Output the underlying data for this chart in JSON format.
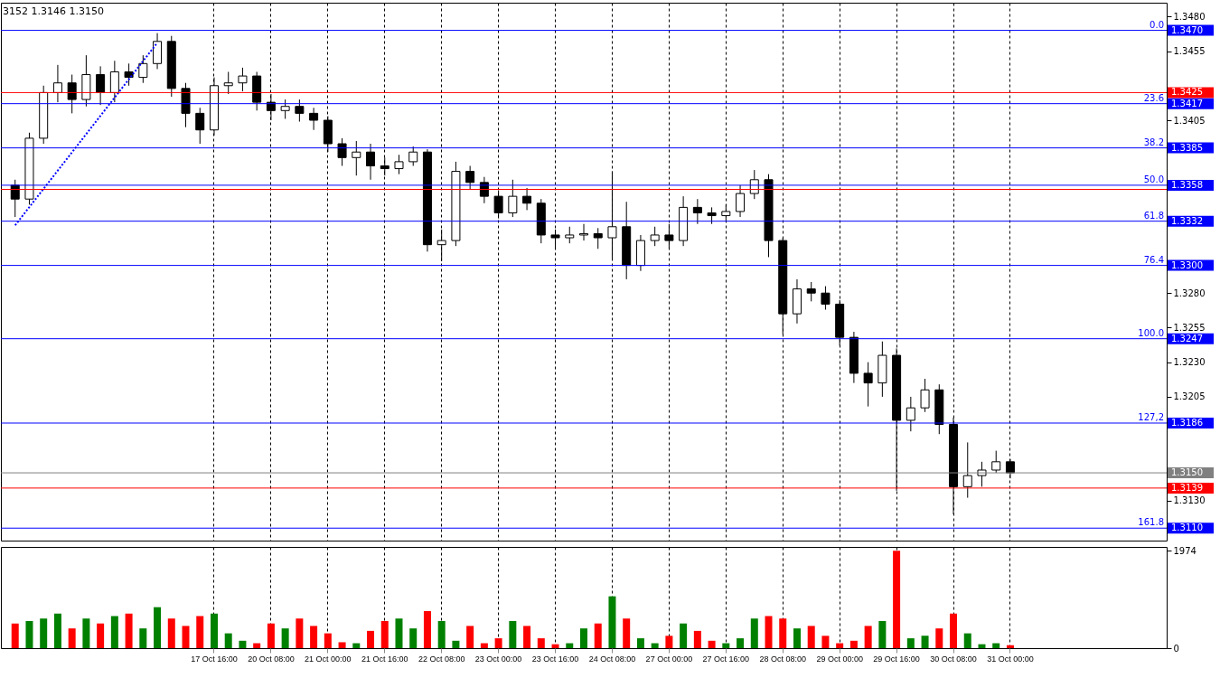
{
  "chart_data": [
    {
      "type": "candlestick",
      "title": "3152 1.3146 1.3150",
      "categories": [
        null,
        null,
        null,
        null,
        null,
        null,
        null,
        null,
        null,
        null,
        null,
        null,
        null,
        null,
        null,
        null,
        null,
        null,
        null,
        null,
        null,
        null,
        null,
        null,
        null,
        null,
        null,
        null,
        null,
        null,
        null,
        null,
        null,
        null,
        null,
        null,
        null,
        null,
        null,
        null,
        null,
        null,
        null,
        null,
        null,
        null,
        null,
        null,
        null,
        null,
        null,
        null,
        null,
        null,
        null,
        null,
        null,
        null,
        null,
        null,
        null,
        null,
        null,
        null,
        null,
        null,
        null,
        null,
        null,
        null,
        null,
        null,
        null,
        null,
        null,
        null,
        null,
        null,
        null,
        null,
        null
      ],
      "ohlc": [
        [
          1.3358,
          1.3362,
          1.3335,
          1.3348
        ],
        [
          1.3348,
          1.3396,
          1.3344,
          1.3392
        ],
        [
          1.3392,
          1.343,
          1.3388,
          1.3425
        ],
        [
          1.3425,
          1.3445,
          1.3418,
          1.3432
        ],
        [
          1.3432,
          1.3438,
          1.341,
          1.342
        ],
        [
          1.342,
          1.3452,
          1.3415,
          1.3438
        ],
        [
          1.3438,
          1.3444,
          1.3416,
          1.3425
        ],
        [
          1.3425,
          1.3448,
          1.3418,
          1.344
        ],
        [
          1.344,
          1.3446,
          1.343,
          1.3436
        ],
        [
          1.3436,
          1.3452,
          1.3432,
          1.3446
        ],
        [
          1.3446,
          1.3468,
          1.3442,
          1.3462
        ],
        [
          1.3462,
          1.3466,
          1.3422,
          1.3428
        ],
        [
          1.3428,
          1.3432,
          1.34,
          1.341
        ],
        [
          1.341,
          1.3414,
          1.3388,
          1.3398
        ],
        [
          1.3398,
          1.3436,
          1.3394,
          1.343
        ],
        [
          1.343,
          1.344,
          1.3424,
          1.3432
        ],
        [
          1.3432,
          1.3443,
          1.3426,
          1.3437
        ],
        [
          1.3437,
          1.344,
          1.3412,
          1.3418
        ],
        [
          1.3418,
          1.3424,
          1.3405,
          1.3412
        ],
        [
          1.3412,
          1.342,
          1.3406,
          1.3415
        ],
        [
          1.3415,
          1.342,
          1.3404,
          1.341
        ],
        [
          1.341,
          1.3414,
          1.3398,
          1.3405
        ],
        [
          1.3405,
          1.3408,
          1.3382,
          1.3388
        ],
        [
          1.3388,
          1.3392,
          1.3372,
          1.3378
        ],
        [
          1.3378,
          1.339,
          1.3365,
          1.3382
        ],
        [
          1.3382,
          1.3388,
          1.3362,
          1.3372
        ],
        [
          1.3372,
          1.3378,
          1.3365,
          1.337
        ],
        [
          1.337,
          1.338,
          1.3366,
          1.3375
        ],
        [
          1.3375,
          1.3386,
          1.3372,
          1.3382
        ],
        [
          1.3382,
          1.3384,
          1.331,
          1.3315
        ],
        [
          1.3315,
          1.3326,
          1.3303,
          1.3318
        ],
        [
          1.3318,
          1.3375,
          1.3314,
          1.3368
        ],
        [
          1.3368,
          1.3372,
          1.3355,
          1.336
        ],
        [
          1.336,
          1.3364,
          1.3345,
          1.335
        ],
        [
          1.335,
          1.3354,
          1.3334,
          1.3338
        ],
        [
          1.3338,
          1.3362,
          1.3335,
          1.335
        ],
        [
          1.335,
          1.3356,
          1.334,
          1.3345
        ],
        [
          1.3345,
          1.3348,
          1.3316,
          1.3322
        ],
        [
          1.3322,
          1.3326,
          1.3312,
          1.332
        ],
        [
          1.332,
          1.3328,
          1.3316,
          1.3322
        ],
        [
          1.3322,
          1.333,
          1.3318,
          1.3323
        ],
        [
          1.3323,
          1.3327,
          1.3312,
          1.332
        ],
        [
          1.332,
          1.3368,
          1.3305,
          1.3328
        ],
        [
          1.3328,
          1.3346,
          1.329,
          1.33
        ],
        [
          1.33,
          1.3322,
          1.3296,
          1.3318
        ],
        [
          1.3318,
          1.3328,
          1.3314,
          1.3322
        ],
        [
          1.3322,
          1.333,
          1.3312,
          1.3318
        ],
        [
          1.3318,
          1.335,
          1.3314,
          1.3342
        ],
        [
          1.3342,
          1.3348,
          1.333,
          1.3338
        ],
        [
          1.3338,
          1.3342,
          1.333,
          1.3336
        ],
        [
          1.3336,
          1.3344,
          1.3332,
          1.3339
        ],
        [
          1.3339,
          1.3358,
          1.3335,
          1.3352
        ],
        [
          1.3352,
          1.3369,
          1.3348,
          1.3362
        ],
        [
          1.3362,
          1.3366,
          1.3306,
          1.3318
        ],
        [
          1.3318,
          1.332,
          1.325,
          1.3265
        ],
        [
          1.3265,
          1.329,
          1.3258,
          1.3283
        ],
        [
          1.3283,
          1.3288,
          1.3274,
          1.328
        ],
        [
          1.328,
          1.3285,
          1.3268,
          1.3272
        ],
        [
          1.3272,
          1.3275,
          1.3242,
          1.3248
        ],
        [
          1.3248,
          1.3252,
          1.3215,
          1.3222
        ],
        [
          1.3222,
          1.323,
          1.3198,
          1.3215
        ],
        [
          1.3215,
          1.3245,
          1.3205,
          1.3235
        ],
        [
          1.3235,
          1.324,
          1.3137,
          1.3188
        ],
        [
          1.3188,
          1.3205,
          1.318,
          1.3197
        ],
        [
          1.3197,
          1.3218,
          1.3194,
          1.321
        ],
        [
          1.321,
          1.3214,
          1.3178,
          1.3185
        ],
        [
          1.3185,
          1.319,
          1.312,
          1.314
        ],
        [
          1.314,
          1.3172,
          1.3132,
          1.3148
        ],
        [
          1.3148,
          1.3158,
          1.314,
          1.3152
        ],
        [
          1.3152,
          1.3166,
          1.315,
          1.3158
        ],
        [
          1.3158,
          1.316,
          1.3146,
          1.315
        ],
        null,
        null,
        null,
        null,
        null,
        null,
        null,
        null,
        null,
        null
      ],
      "series": [
        {
          "type": "line",
          "color": "#0000ff",
          "line_style": "dotted",
          "values": [
            1.3329,
            null,
            null,
            null,
            null,
            null,
            null,
            null,
            null,
            null,
            1.3461,
            null,
            null,
            null,
            null,
            null,
            null,
            null,
            null,
            null,
            null,
            null,
            null,
            null,
            null,
            null,
            null,
            null,
            null,
            null,
            null,
            null,
            null,
            null,
            null,
            null,
            null,
            null,
            null,
            null,
            null,
            null,
            null,
            null,
            null,
            null,
            null,
            null,
            null,
            null,
            null,
            null,
            null,
            null,
            null,
            null,
            null,
            null,
            null,
            null,
            null,
            null,
            null,
            null,
            null,
            null,
            null,
            null,
            null,
            null,
            null,
            null,
            null,
            null,
            null,
            null,
            null,
            null,
            null,
            null,
            null
          ]
        }
      ],
      "ref_lines": [
        {
          "axis": "y",
          "value": 1.347,
          "label": "1.3470",
          "color": "#0000ff"
        },
        {
          "axis": "y",
          "value": 1.3425,
          "label": "1.3425",
          "color": "#ff0000"
        },
        {
          "axis": "y",
          "value": 1.3417,
          "label": "1.3417",
          "color": "#0000ff"
        },
        {
          "axis": "y",
          "value": 1.3385,
          "label": "1.3385",
          "color": "#0000ff"
        },
        {
          "axis": "y",
          "value": 1.3358,
          "label": "1.3358",
          "color": "#0000ff"
        },
        {
          "axis": "y",
          "value": 1.3355,
          "color": "#ff0000"
        },
        {
          "axis": "y",
          "value": 1.3332,
          "label": "1.3332",
          "color": "#0000ff"
        },
        {
          "axis": "y",
          "value": 1.33,
          "label": "1.3300",
          "color": "#0000ff"
        },
        {
          "axis": "y",
          "value": 1.3247,
          "label": "1.3247",
          "color": "#0000ff"
        },
        {
          "axis": "y",
          "value": 1.3186,
          "label": "1.3186",
          "color": "#0000ff"
        },
        {
          "axis": "y",
          "value": 1.315,
          "label": "1.3150",
          "color": "#808080"
        },
        {
          "axis": "y",
          "value": 1.3139,
          "label": "1.3139",
          "color": "#ff0000"
        },
        {
          "axis": "y",
          "value": 1.311,
          "label": "1.3110",
          "color": "#0000ff"
        }
      ],
      "annotations": [
        {
          "text": "0.0",
          "y": 1.347
        },
        {
          "text": "23.6",
          "y": 1.3417
        },
        {
          "text": "38.2",
          "y": 1.3385
        },
        {
          "text": "50.0",
          "y": 1.3358
        },
        {
          "text": "61.8",
          "y": 1.3332
        },
        {
          "text": "76.4",
          "y": 1.33
        },
        {
          "text": "100.0",
          "y": 1.3247
        },
        {
          "text": "127,2",
          "y": 1.3186
        },
        {
          "text": "161.8",
          "y": 1.311
        }
      ],
      "ylim": [
        1.3101,
        1.349
      ],
      "yticks": [
        {
          "value": 1.313,
          "label": "1.3130"
        },
        1.3205,
        {
          "value": 1.323,
          "label": "1.3230"
        },
        1.3255,
        {
          "value": 1.328,
          "label": "1.3280"
        },
        1.3405,
        1.3455,
        {
          "value": 1.348,
          "label": "1.3480"
        }
      ],
      "grid": "x",
      "tick_labels": "y"
    },
    {
      "type": "bar",
      "categories": [
        null,
        null,
        null,
        null,
        null,
        null,
        null,
        null,
        null,
        null,
        null,
        null,
        null,
        null,
        "17 Oct 16:00",
        null,
        null,
        null,
        "20 Oct 08:00",
        null,
        null,
        null,
        "21 Oct 00:00",
        null,
        null,
        null,
        "21 Oct 16:00",
        null,
        null,
        null,
        "22 Oct 08:00",
        null,
        null,
        null,
        "23 Oct 00:00",
        null,
        null,
        null,
        "23 Oct 16:00",
        null,
        null,
        null,
        "24 Oct 08:00",
        null,
        null,
        null,
        "27 Oct 00:00",
        null,
        null,
        null,
        "27 Oct 16:00",
        null,
        null,
        null,
        "28 Oct 08:00",
        null,
        null,
        null,
        "29 Oct 00:00",
        null,
        null,
        null,
        "29 Oct 16:00",
        null,
        null,
        null,
        "30 Oct 08:00",
        null,
        null,
        null,
        "31 Oct 00:00",
        null,
        null,
        null,
        null,
        null,
        null,
        null,
        null,
        null,
        null
      ],
      "values": [
        500,
        550,
        600,
        700,
        400,
        600,
        500,
        650,
        700,
        400,
        830,
        600,
        450,
        650,
        700,
        300,
        150,
        100,
        500,
        400,
        600,
        450,
        300,
        120,
        100,
        350,
        550,
        600,
        400,
        750,
        550,
        150,
        450,
        100,
        200,
        550,
        450,
        200,
        80,
        100,
        400,
        500,
        1050,
        600,
        200,
        100,
        250,
        500,
        350,
        150,
        100,
        200,
        600,
        650,
        600,
        400,
        450,
        250,
        100,
        150,
        450,
        550,
        1974,
        200,
        250,
        400,
        700,
        300,
        80,
        100,
        60,
        null,
        null,
        null,
        null,
        null,
        null,
        null,
        null,
        null,
        null
      ],
      "colors": [
        "#ff0000",
        "#008000",
        "#008000",
        "#008000",
        "#ff0000",
        "#008000",
        "#ff0000",
        "#008000",
        "#ff0000",
        "#008000",
        "#008000",
        "#ff0000",
        "#ff0000",
        "#ff0000",
        "#008000",
        "#008000",
        "#008000",
        "#ff0000",
        "#ff0000",
        "#008000",
        "#ff0000",
        "#ff0000",
        "#ff0000",
        "#ff0000",
        "#008000",
        "#ff0000",
        "#ff0000",
        "#008000",
        "#008000",
        "#ff0000",
        "#008000",
        "#008000",
        "#ff0000",
        "#ff0000",
        "#ff0000",
        "#008000",
        "#ff0000",
        "#ff0000",
        "#ff0000",
        "#008000",
        "#008000",
        "#ff0000",
        "#008000",
        "#ff0000",
        "#008000",
        "#008000",
        "#ff0000",
        "#008000",
        "#ff0000",
        "#ff0000",
        "#008000",
        "#008000",
        "#008000",
        "#ff0000",
        "#ff0000",
        "#008000",
        "#ff0000",
        "#ff0000",
        "#ff0000",
        "#ff0000",
        "#ff0000",
        "#008000",
        "#ff0000",
        "#008000",
        "#008000",
        "#ff0000",
        "#ff0000",
        "#008000",
        "#008000",
        "#008000",
        "#ff0000",
        null,
        null,
        null,
        null,
        null,
        null,
        null,
        null,
        null,
        null
      ],
      "ylim": [
        0,
        2050
      ],
      "yticks": [
        0,
        1974
      ],
      "grid": "x"
    }
  ]
}
